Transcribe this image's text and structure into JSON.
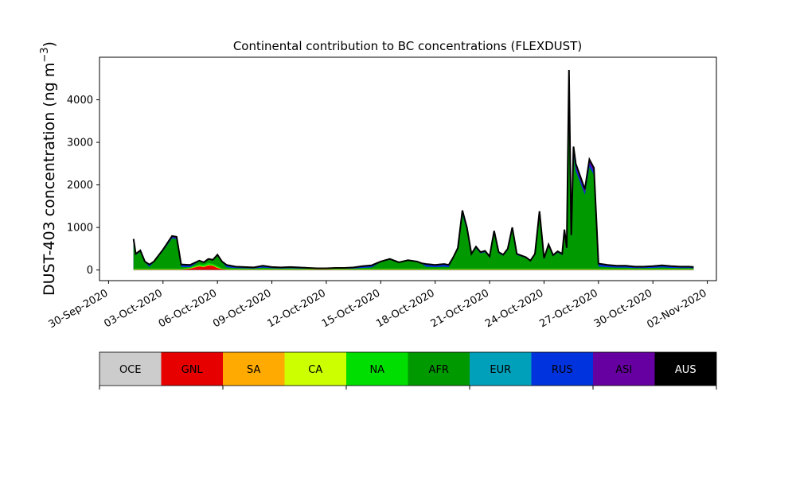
{
  "chart_data": {
    "type": "area",
    "stacked": true,
    "title": "Continental contribution to BC concentrations (FLEXDUST)",
    "ylabel_main": "DUST-403 concentration (ng m",
    "ylabel_sup": "−3",
    "ylabel_close": ")",
    "xlim": [
      "2020-09-29T12:00",
      "2020-11-02T12:00"
    ],
    "ylim": [
      -250,
      5000
    ],
    "yticks": [
      0,
      1000,
      2000,
      3000,
      4000
    ],
    "xtick_dates": [
      "2020-09-30",
      "2020-10-03",
      "2020-10-06",
      "2020-10-09",
      "2020-10-12",
      "2020-10-15",
      "2020-10-18",
      "2020-10-21",
      "2020-10-24",
      "2020-10-27",
      "2020-10-30",
      "2020-11-02"
    ],
    "xtick_labels": [
      "30-Sep-2020",
      "03-Oct-2020",
      "06-Oct-2020",
      "09-Oct-2020",
      "12-Oct-2020",
      "15-Oct-2020",
      "18-Oct-2020",
      "21-Oct-2020",
      "24-Oct-2020",
      "27-Oct-2020",
      "30-Oct-2020",
      "02-Nov-2020"
    ],
    "legend_position": "below",
    "x": [
      "2020-10-01T09:00",
      "2020-10-01T12:00",
      "2020-10-01T18:00",
      "2020-10-02T00:00",
      "2020-10-02T06:00",
      "2020-10-02T12:00",
      "2020-10-03T00:00",
      "2020-10-03T12:00",
      "2020-10-03T18:00",
      "2020-10-04T00:00",
      "2020-10-04T12:00",
      "2020-10-05T00:00",
      "2020-10-05T06:00",
      "2020-10-05T12:00",
      "2020-10-05T18:00",
      "2020-10-06T00:00",
      "2020-10-06T06:00",
      "2020-10-06T12:00",
      "2020-10-07T00:00",
      "2020-10-07T12:00",
      "2020-10-08T00:00",
      "2020-10-08T12:00",
      "2020-10-09T00:00",
      "2020-10-09T12:00",
      "2020-10-10T00:00",
      "2020-10-10T12:00",
      "2020-10-11T00:00",
      "2020-10-11T12:00",
      "2020-10-12T00:00",
      "2020-10-12T12:00",
      "2020-10-13T00:00",
      "2020-10-13T12:00",
      "2020-10-14T00:00",
      "2020-10-14T12:00",
      "2020-10-15T00:00",
      "2020-10-15T12:00",
      "2020-10-16T00:00",
      "2020-10-16T12:00",
      "2020-10-17T00:00",
      "2020-10-17T06:00",
      "2020-10-17T12:00",
      "2020-10-17T18:00",
      "2020-10-18T00:00",
      "2020-10-18T06:00",
      "2020-10-18T12:00",
      "2020-10-18T18:00",
      "2020-10-19T00:00",
      "2020-10-19T06:00",
      "2020-10-19T12:00",
      "2020-10-19T18:00",
      "2020-10-20T00:00",
      "2020-10-20T06:00",
      "2020-10-20T12:00",
      "2020-10-20T18:00",
      "2020-10-21T00:00",
      "2020-10-21T06:00",
      "2020-10-21T12:00",
      "2020-10-21T18:00",
      "2020-10-22T00:00",
      "2020-10-22T06:00",
      "2020-10-22T12:00",
      "2020-10-23T00:00",
      "2020-10-23T06:00",
      "2020-10-23T12:00",
      "2020-10-23T18:00",
      "2020-10-24T00:00",
      "2020-10-24T06:00",
      "2020-10-24T12:00",
      "2020-10-24T18:00",
      "2020-10-25T00:00",
      "2020-10-25T03:00",
      "2020-10-25T06:00",
      "2020-10-25T09:00",
      "2020-10-25T12:00",
      "2020-10-25T15:00",
      "2020-10-25T18:00",
      "2020-10-26T00:00",
      "2020-10-26T06:00",
      "2020-10-26T12:00",
      "2020-10-26T18:00",
      "2020-10-27T00:00",
      "2020-10-27T12:00",
      "2020-10-28T00:00",
      "2020-10-28T12:00",
      "2020-10-29T00:00",
      "2020-10-29T12:00",
      "2020-10-30T00:00",
      "2020-10-30T12:00",
      "2020-10-31T00:00",
      "2020-10-31T12:00",
      "2020-11-01T00:00",
      "2020-11-01T06:00"
    ],
    "total": [
      730,
      380,
      460,
      200,
      130,
      200,
      480,
      800,
      780,
      130,
      120,
      220,
      180,
      260,
      240,
      360,
      200,
      120,
      80,
      70,
      60,
      100,
      70,
      60,
      70,
      60,
      50,
      40,
      40,
      50,
      50,
      60,
      90,
      110,
      200,
      260,
      180,
      230,
      200,
      160,
      140,
      130,
      120,
      130,
      140,
      120,
      300,
      520,
      1400,
      1000,
      380,
      550,
      420,
      450,
      320,
      920,
      420,
      360,
      500,
      1000,
      380,
      300,
      220,
      380,
      1380,
      280,
      600,
      350,
      440,
      380,
      950,
      520,
      4700,
      820,
      2900,
      2500,
      2200,
      1900,
      2600,
      2400,
      150,
      120,
      100,
      100,
      80,
      80,
      90,
      110,
      90,
      80,
      80,
      70
    ],
    "series": [
      {
        "name": "OCE",
        "color": "#cccccc",
        "values": [
          5,
          5,
          5,
          5,
          5,
          5,
          5,
          5,
          5,
          5,
          5,
          5,
          5,
          5,
          5,
          5,
          5,
          5,
          5,
          5,
          5,
          5,
          5,
          5,
          5,
          5,
          5,
          5,
          5,
          5,
          5,
          5,
          5,
          5,
          5,
          5,
          5,
          5,
          5,
          5,
          5,
          5,
          5,
          5,
          5,
          5,
          5,
          5,
          5,
          5,
          5,
          5,
          5,
          5,
          5,
          5,
          5,
          5,
          5,
          5,
          5,
          5,
          5,
          5,
          5,
          5,
          5,
          5,
          5,
          5,
          5,
          5,
          5,
          5,
          5,
          5,
          5,
          5,
          5,
          5,
          5,
          5,
          5,
          5,
          5,
          5,
          5,
          5,
          5,
          5,
          5,
          5
        ]
      },
      {
        "name": "GNL",
        "color": "#e60000",
        "values": [
          5,
          5,
          5,
          5,
          5,
          5,
          5,
          5,
          5,
          5,
          25,
          80,
          60,
          100,
          90,
          40,
          15,
          5,
          5,
          5,
          5,
          5,
          5,
          5,
          5,
          5,
          5,
          5,
          5,
          5,
          5,
          5,
          5,
          5,
          5,
          5,
          5,
          5,
          5,
          5,
          5,
          5,
          5,
          5,
          5,
          5,
          5,
          5,
          5,
          5,
          5,
          5,
          5,
          5,
          5,
          5,
          5,
          5,
          5,
          5,
          5,
          5,
          5,
          5,
          5,
          5,
          5,
          5,
          5,
          5,
          5,
          5,
          5,
          5,
          5,
          5,
          5,
          5,
          5,
          5,
          5,
          5,
          5,
          5,
          5,
          5,
          5,
          5,
          5,
          5,
          5,
          5
        ]
      },
      {
        "name": "SA",
        "color": "#ffaa00",
        "values": [
          5,
          5,
          5,
          5,
          5,
          5,
          5,
          5,
          5,
          5,
          10,
          10,
          10,
          10,
          10,
          10,
          5,
          5,
          5,
          5,
          5,
          5,
          5,
          5,
          5,
          5,
          5,
          5,
          5,
          5,
          5,
          5,
          5,
          5,
          5,
          5,
          5,
          5,
          5,
          5,
          5,
          5,
          5,
          5,
          5,
          5,
          5,
          5,
          5,
          5,
          5,
          5,
          5,
          5,
          5,
          5,
          5,
          5,
          5,
          5,
          5,
          5,
          5,
          5,
          5,
          5,
          5,
          5,
          5,
          5,
          5,
          5,
          5,
          5,
          5,
          5,
          5,
          5,
          5,
          5,
          5,
          5,
          5,
          5,
          5,
          5,
          5,
          5,
          5,
          5,
          5,
          5
        ]
      },
      {
        "name": "CA",
        "color": "#ccff00",
        "values": [
          5,
          5,
          5,
          5,
          5,
          5,
          5,
          5,
          5,
          5,
          5,
          10,
          10,
          10,
          10,
          10,
          5,
          5,
          5,
          5,
          5,
          5,
          5,
          5,
          5,
          5,
          5,
          5,
          5,
          5,
          5,
          5,
          5,
          5,
          5,
          5,
          5,
          5,
          5,
          5,
          5,
          5,
          5,
          5,
          5,
          5,
          5,
          5,
          5,
          5,
          5,
          5,
          5,
          5,
          5,
          5,
          5,
          5,
          5,
          5,
          5,
          5,
          5,
          5,
          5,
          5,
          5,
          5,
          5,
          5,
          5,
          5,
          5,
          5,
          5,
          5,
          5,
          5,
          5,
          5,
          5,
          5,
          5,
          5,
          5,
          5,
          5,
          5,
          5,
          5,
          5,
          5
        ]
      },
      {
        "name": "NA",
        "color": "#00dd00",
        "values": [
          10,
          10,
          10,
          10,
          10,
          10,
          10,
          10,
          10,
          10,
          20,
          30,
          40,
          40,
          30,
          30,
          10,
          10,
          10,
          10,
          10,
          10,
          10,
          10,
          10,
          10,
          10,
          10,
          10,
          10,
          10,
          10,
          10,
          10,
          10,
          10,
          10,
          10,
          10,
          10,
          10,
          10,
          10,
          10,
          10,
          10,
          10,
          10,
          10,
          10,
          10,
          10,
          10,
          10,
          10,
          10,
          10,
          10,
          10,
          10,
          10,
          10,
          10,
          10,
          10,
          10,
          10,
          10,
          10,
          10,
          10,
          10,
          10,
          10,
          10,
          10,
          10,
          10,
          10,
          10,
          10,
          10,
          10,
          10,
          10,
          10,
          10,
          10,
          10,
          10,
          10,
          10
        ]
      }
    ]
  },
  "legend": [
    {
      "name": "OCE",
      "color": "#cccccc",
      "text_color": "#000000"
    },
    {
      "name": "GNL",
      "color": "#e60000",
      "text_color": "#000000"
    },
    {
      "name": "SA",
      "color": "#ffaa00",
      "text_color": "#000000"
    },
    {
      "name": "CA",
      "color": "#ccff00",
      "text_color": "#000000"
    },
    {
      "name": "NA",
      "color": "#00dd00",
      "text_color": "#000000"
    },
    {
      "name": "AFR",
      "color": "#009900",
      "text_color": "#000000"
    },
    {
      "name": "EUR",
      "color": "#00a0bb",
      "text_color": "#000000"
    },
    {
      "name": "RUS",
      "color": "#0033dd",
      "text_color": "#000000"
    },
    {
      "name": "ASI",
      "color": "#6600a0",
      "text_color": "#000000"
    },
    {
      "name": "AUS",
      "color": "#000000",
      "text_color": "#ffffff"
    }
  ]
}
